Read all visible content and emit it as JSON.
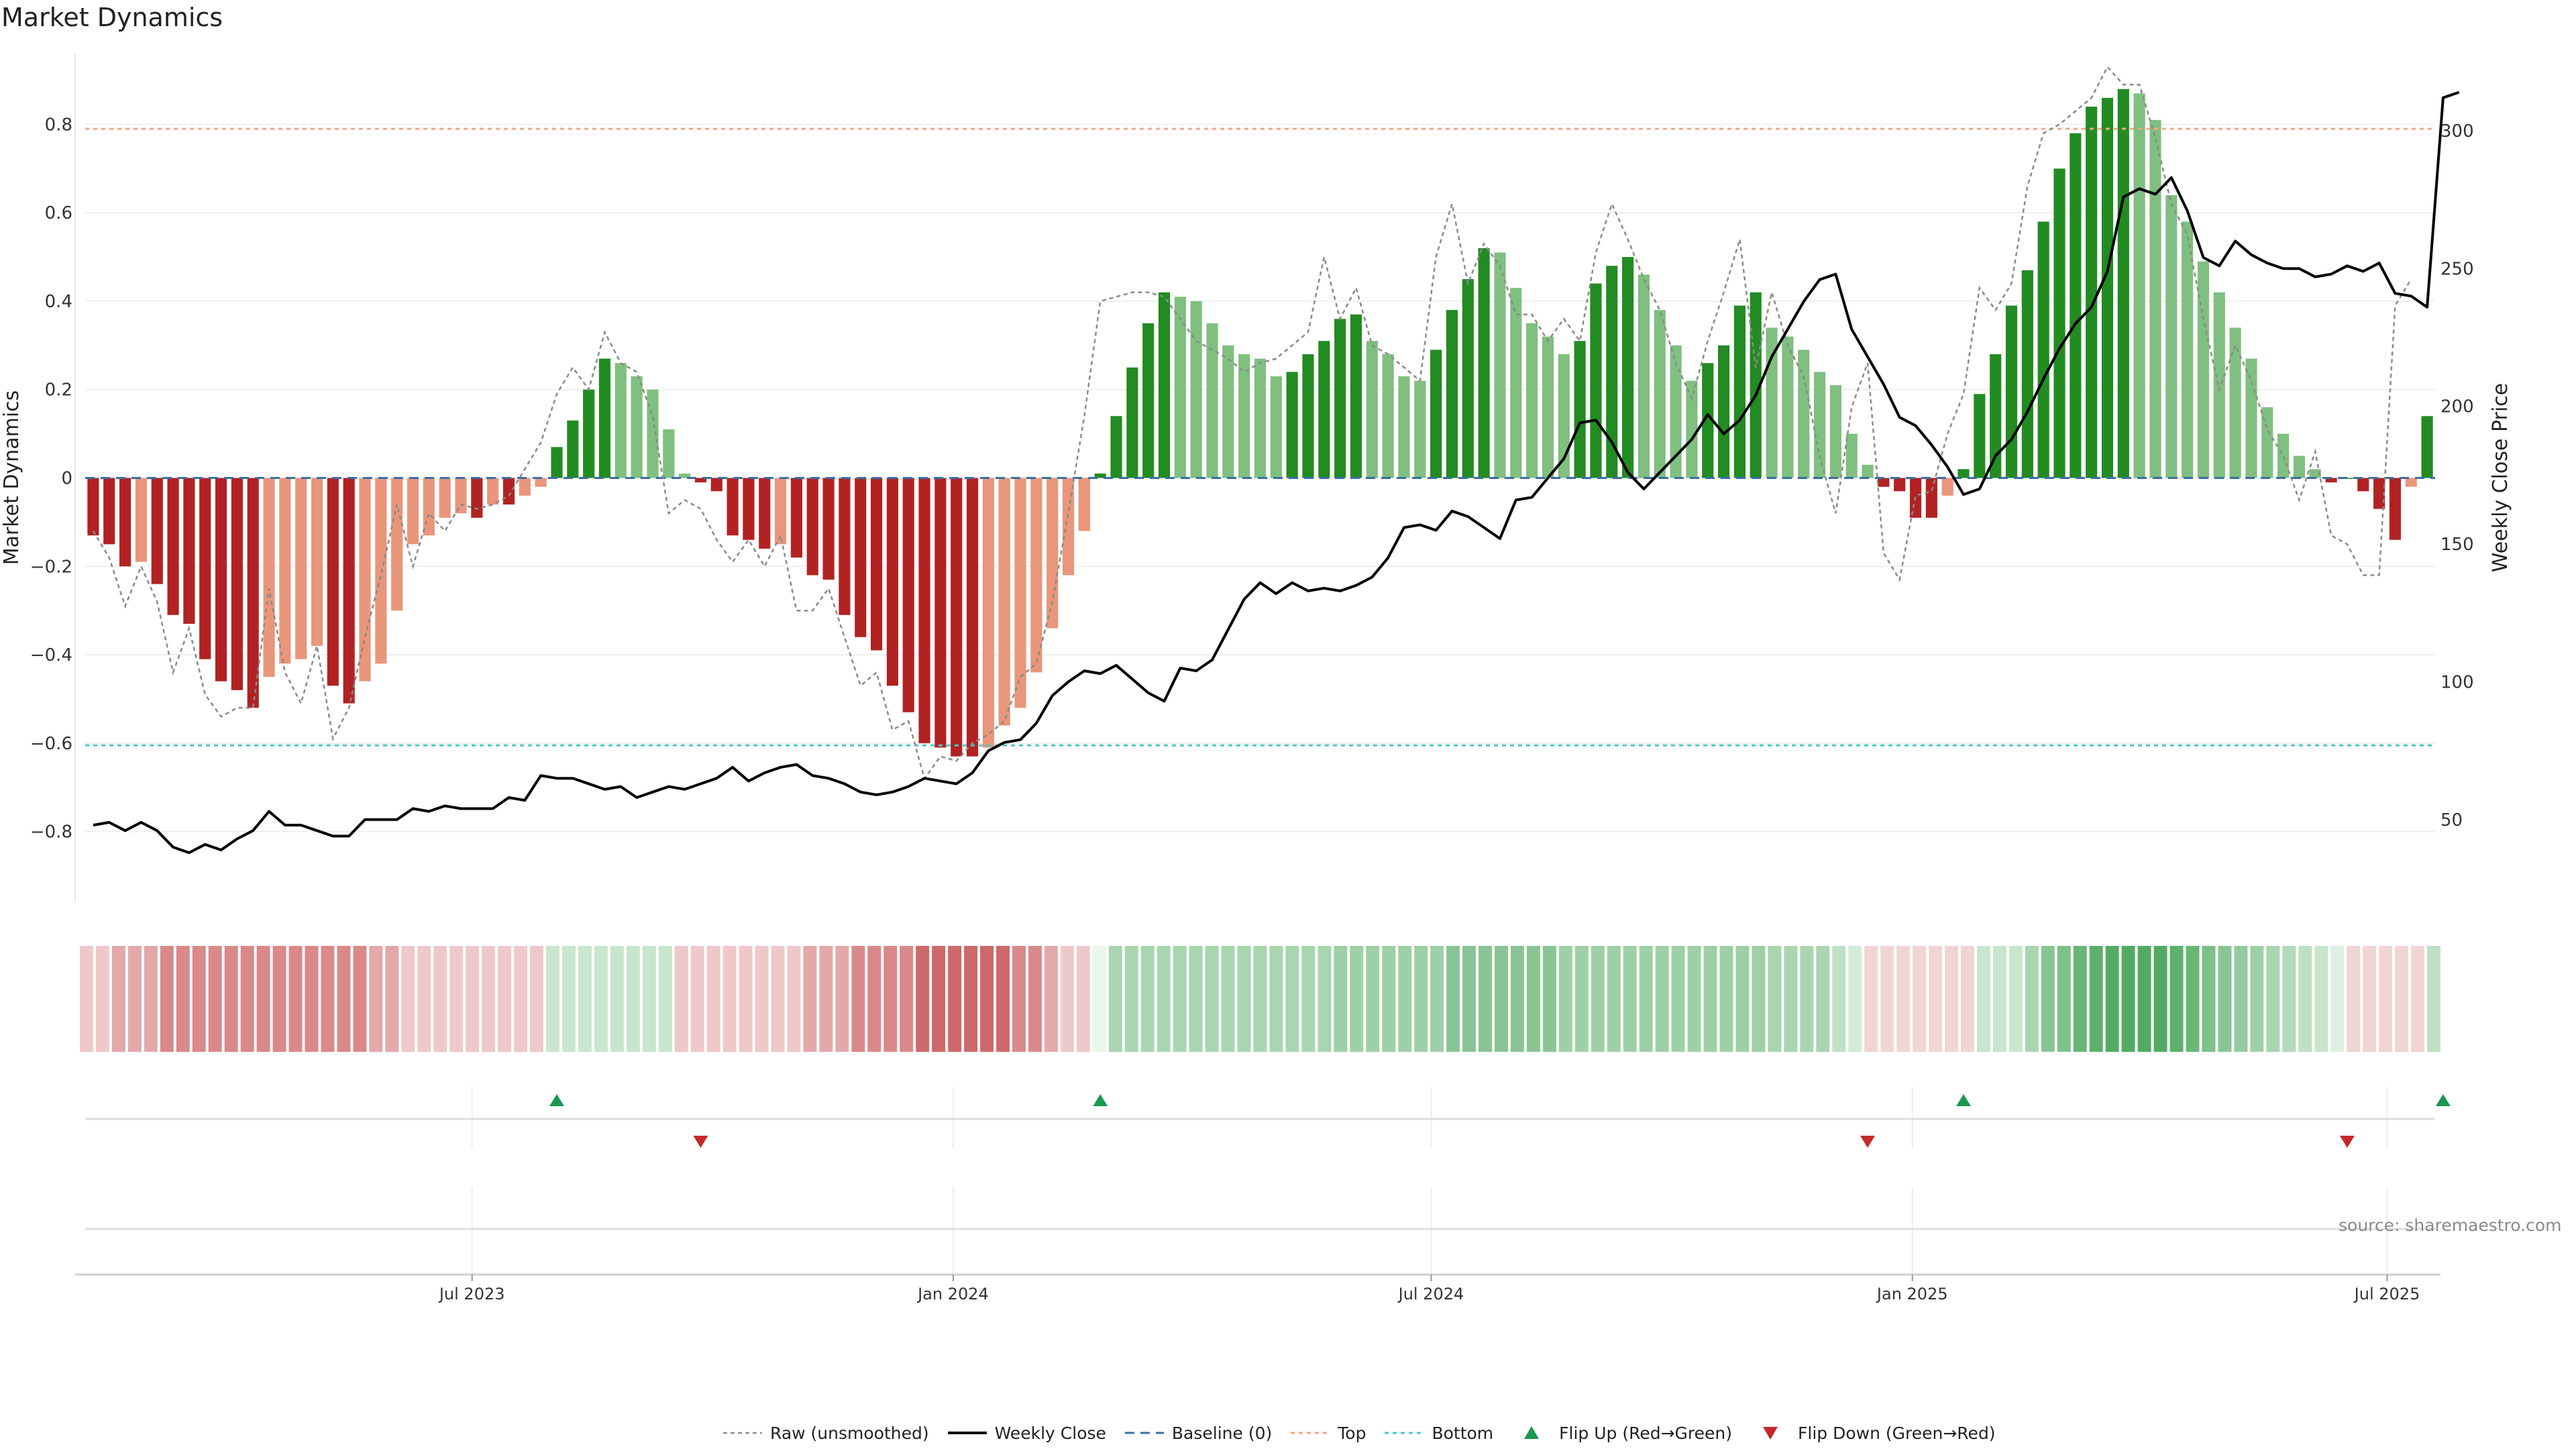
{
  "chart_data": {
    "type": "bar",
    "title": "Market Dynamics",
    "ylabel_left": "Market Dynamics",
    "ylabel_right": "Weekly Close Price",
    "source": "source: sharemaestro.com",
    "left_axis": {
      "ylim": [
        -0.96,
        0.96
      ],
      "ticks": [
        -0.8,
        -0.6,
        -0.4,
        -0.2,
        0,
        0.2,
        0.4,
        0.6,
        0.8
      ],
      "tick_labels": [
        "−0.8",
        "−0.6",
        "−0.4",
        "−0.2",
        "0",
        "0.2",
        "0.4",
        "0.6",
        "0.8"
      ]
    },
    "right_axis": {
      "ylim": [
        20,
        328
      ],
      "ticks": [
        50,
        100,
        150,
        200,
        250,
        300
      ],
      "tick_labels": [
        "50",
        "100",
        "150",
        "200",
        "250",
        "300"
      ]
    },
    "x_axis": {
      "ticks": [
        {
          "week": 24.2,
          "label": "Jul 2023"
        },
        {
          "week": 54.3,
          "label": "Jan 2024"
        },
        {
          "week": 84.2,
          "label": "Jul 2024"
        },
        {
          "week": 114.3,
          "label": "Jan 2025"
        },
        {
          "week": 144.0,
          "label": "Jul 2025"
        }
      ]
    },
    "reference_lines": {
      "top": 0.79,
      "bottom": -0.605,
      "baseline": 0
    },
    "bars": [
      -0.13,
      -0.15,
      -0.2,
      -0.19,
      -0.24,
      -0.31,
      -0.33,
      -0.41,
      -0.46,
      -0.48,
      -0.52,
      -0.45,
      -0.42,
      -0.41,
      -0.38,
      -0.47,
      -0.51,
      -0.46,
      -0.42,
      -0.3,
      -0.15,
      -0.13,
      -0.09,
      -0.08,
      -0.09,
      -0.06,
      -0.06,
      -0.04,
      -0.02,
      0.07,
      0.13,
      0.2,
      0.27,
      0.26,
      0.23,
      0.2,
      0.11,
      0.01,
      -0.01,
      -0.03,
      -0.13,
      -0.14,
      -0.16,
      -0.15,
      -0.18,
      -0.22,
      -0.23,
      -0.31,
      -0.36,
      -0.39,
      -0.47,
      -0.53,
      -0.6,
      -0.61,
      -0.63,
      -0.63,
      -0.61,
      -0.56,
      -0.52,
      -0.44,
      -0.34,
      -0.22,
      -0.12,
      0.01,
      0.14,
      0.25,
      0.35,
      0.42,
      0.41,
      0.4,
      0.35,
      0.3,
      0.28,
      0.27,
      0.23,
      0.24,
      0.28,
      0.31,
      0.36,
      0.37,
      0.31,
      0.28,
      0.23,
      0.22,
      0.29,
      0.38,
      0.45,
      0.52,
      0.51,
      0.43,
      0.35,
      0.32,
      0.28,
      0.31,
      0.44,
      0.48,
      0.5,
      0.46,
      0.38,
      0.3,
      0.22,
      0.26,
      0.3,
      0.39,
      0.42,
      0.34,
      0.32,
      0.29,
      0.24,
      0.21,
      0.1,
      0.03,
      -0.02,
      -0.03,
      -0.09,
      -0.09,
      -0.04,
      0.02,
      0.19,
      0.28,
      0.39,
      0.47,
      0.58,
      0.7,
      0.78,
      0.84,
      0.86,
      0.88,
      0.87,
      0.81,
      0.64,
      0.58,
      0.49,
      0.42,
      0.34,
      0.27,
      0.16,
      0.1,
      0.05,
      0.02,
      -0.01,
      0.0,
      -0.03,
      -0.07,
      -0.14,
      -0.02,
      0.14
    ],
    "raw": [
      -0.12,
      -0.18,
      -0.29,
      -0.2,
      -0.28,
      -0.44,
      -0.34,
      -0.49,
      -0.54,
      -0.52,
      -0.52,
      -0.25,
      -0.44,
      -0.51,
      -0.38,
      -0.59,
      -0.52,
      -0.36,
      -0.22,
      -0.06,
      -0.2,
      -0.08,
      -0.12,
      -0.06,
      -0.07,
      -0.06,
      -0.04,
      0.02,
      0.08,
      0.19,
      0.25,
      0.2,
      0.33,
      0.26,
      0.24,
      0.14,
      -0.08,
      -0.05,
      -0.07,
      -0.14,
      -0.19,
      -0.14,
      -0.2,
      -0.13,
      -0.3,
      -0.3,
      -0.25,
      -0.36,
      -0.47,
      -0.44,
      -0.57,
      -0.55,
      -0.68,
      -0.63,
      -0.64,
      -0.6,
      -0.58,
      -0.55,
      -0.45,
      -0.42,
      -0.28,
      -0.08,
      0.14,
      0.4,
      0.41,
      0.42,
      0.42,
      0.41,
      0.36,
      0.31,
      0.29,
      0.27,
      0.24,
      0.26,
      0.27,
      0.3,
      0.33,
      0.5,
      0.36,
      0.43,
      0.3,
      0.28,
      0.25,
      0.22,
      0.5,
      0.62,
      0.44,
      0.53,
      0.48,
      0.37,
      0.37,
      0.31,
      0.36,
      0.31,
      0.51,
      0.62,
      0.54,
      0.45,
      0.38,
      0.26,
      0.18,
      0.31,
      0.42,
      0.54,
      0.25,
      0.42,
      0.3,
      0.23,
      0.05,
      -0.08,
      0.16,
      0.26,
      -0.17,
      -0.23,
      -0.04,
      -0.03,
      0.1,
      0.19,
      0.43,
      0.38,
      0.44,
      0.66,
      0.78,
      0.8,
      0.83,
      0.86,
      0.93,
      0.89,
      0.89,
      0.77,
      0.62,
      0.55,
      0.36,
      0.2,
      0.3,
      0.22,
      0.11,
      0.05,
      -0.05,
      0.06,
      -0.13,
      -0.15,
      -0.22,
      -0.22,
      0.39,
      0.45
    ],
    "weekly_close": [
      48,
      49,
      46,
      49,
      46,
      40,
      38,
      41,
      39,
      43,
      46,
      53,
      48,
      48,
      46,
      44,
      44,
      50,
      50,
      50,
      54,
      53,
      55,
      54,
      54,
      54,
      58,
      57,
      66,
      65,
      65,
      63,
      61,
      62,
      58,
      60,
      62,
      61,
      63,
      65,
      69,
      64,
      67,
      69,
      70,
      66,
      65,
      63,
      60,
      59,
      60,
      62,
      65,
      64,
      63,
      67,
      75,
      78,
      79,
      85,
      95,
      100,
      104,
      103,
      106,
      101,
      96,
      93,
      105,
      104,
      108,
      119,
      130,
      136,
      132,
      136,
      133,
      134,
      133,
      135,
      138,
      145,
      156,
      157,
      155,
      162,
      160,
      156,
      152,
      166,
      167,
      174,
      181,
      194,
      195,
      187,
      176,
      170,
      176,
      182,
      188,
      197,
      190,
      195,
      204,
      218,
      228,
      238,
      246,
      248,
      228,
      218,
      208,
      196,
      193,
      186,
      178,
      168,
      170,
      182,
      188,
      198,
      210,
      221,
      230,
      236,
      249,
      276,
      279,
      277,
      283,
      271,
      254,
      251,
      260,
      255,
      252,
      250,
      250,
      247,
      248,
      251,
      249,
      252,
      241,
      240,
      236,
      312,
      314
    ],
    "heat_strip": [
      -0.25,
      -0.25,
      -0.4,
      -0.4,
      -0.4,
      -0.55,
      -0.55,
      -0.55,
      -0.55,
      -0.55,
      -0.55,
      -0.55,
      -0.55,
      -0.55,
      -0.55,
      -0.55,
      -0.55,
      -0.55,
      -0.4,
      -0.4,
      -0.25,
      -0.25,
      -0.25,
      -0.25,
      -0.25,
      -0.25,
      -0.25,
      -0.25,
      -0.25,
      0.25,
      0.25,
      0.25,
      0.25,
      0.25,
      0.25,
      0.25,
      0.25,
      -0.25,
      -0.25,
      -0.25,
      -0.25,
      -0.25,
      -0.25,
      -0.25,
      -0.25,
      -0.4,
      -0.4,
      -0.4,
      -0.55,
      -0.55,
      -0.55,
      -0.55,
      -0.7,
      -0.7,
      -0.7,
      -0.7,
      -0.7,
      -0.7,
      -0.55,
      -0.55,
      -0.4,
      -0.25,
      -0.25,
      0.1,
      0.4,
      0.4,
      0.4,
      0.4,
      0.4,
      0.4,
      0.4,
      0.4,
      0.4,
      0.4,
      0.4,
      0.4,
      0.4,
      0.4,
      0.45,
      0.45,
      0.45,
      0.45,
      0.45,
      0.45,
      0.45,
      0.55,
      0.55,
      0.55,
      0.55,
      0.55,
      0.55,
      0.55,
      0.45,
      0.45,
      0.45,
      0.45,
      0.45,
      0.45,
      0.45,
      0.45,
      0.45,
      0.45,
      0.45,
      0.45,
      0.45,
      0.4,
      0.4,
      0.4,
      0.4,
      0.3,
      0.2,
      -0.2,
      -0.2,
      -0.2,
      -0.2,
      -0.2,
      -0.2,
      -0.2,
      0.25,
      0.25,
      0.25,
      0.4,
      0.55,
      0.6,
      0.7,
      0.75,
      0.8,
      0.8,
      0.8,
      0.8,
      0.75,
      0.7,
      0.6,
      0.55,
      0.5,
      0.45,
      0.4,
      0.35,
      0.3,
      0.25,
      0.15,
      -0.2,
      -0.2,
      -0.2,
      -0.2,
      -0.2,
      0.3
    ],
    "flips": {
      "up": [
        29.5,
        63.5,
        117.5,
        147.5
      ],
      "down": [
        38.5,
        111.5,
        141.5
      ]
    },
    "colors": {
      "strong_green": "#228b22",
      "light_green": "#7fbf7f",
      "strong_red": "#b22222",
      "light_red": "#e9967a",
      "weekly_close": "#000000",
      "raw": "#8a8a8a",
      "top": "#f4a582",
      "bottom": "#48c9c9",
      "baseline": "#3a6ea5",
      "flip_up": "#1a9850",
      "flip_down": "#c62828"
    },
    "legend": [
      {
        "key": "raw",
        "label": "Raw (unsmoothed)"
      },
      {
        "key": "close",
        "label": "Weekly Close"
      },
      {
        "key": "baseline",
        "label": "Baseline (0)"
      },
      {
        "key": "top",
        "label": "Top"
      },
      {
        "key": "bottom",
        "label": "Bottom"
      },
      {
        "key": "flip_up",
        "label": "Flip Up (Red→Green)"
      },
      {
        "key": "flip_down",
        "label": "Flip Down (Green→Red)"
      }
    ]
  }
}
